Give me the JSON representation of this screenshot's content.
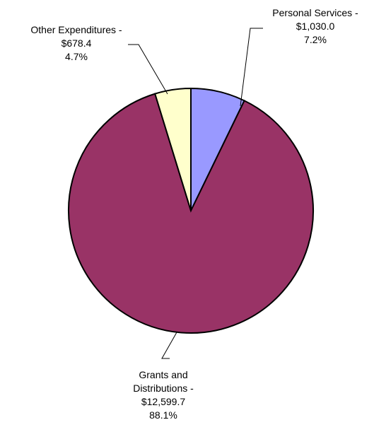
{
  "chart_data": {
    "type": "pie",
    "title": "",
    "start_angle_deg": 0,
    "direction": "clockwise",
    "slices": [
      {
        "category": "Personal Services",
        "value": 1030.0,
        "percent": 7.2,
        "label_lines": [
          "Personal Services -",
          "$1,030.0",
          "7.2%"
        ],
        "color": "#9999ff"
      },
      {
        "category": "Grants and Distributions",
        "value": 12599.7,
        "percent": 88.1,
        "label_lines": [
          "Grants and",
          "Distributions -",
          "$12,599.7",
          "88.1%"
        ],
        "color": "#993366"
      },
      {
        "category": "Other Expenditures",
        "value": 678.4,
        "percent": 4.7,
        "label_lines": [
          "Other Expenditures -",
          "$678.4",
          "4.7%"
        ],
        "color": "#ffffcc"
      }
    ]
  }
}
